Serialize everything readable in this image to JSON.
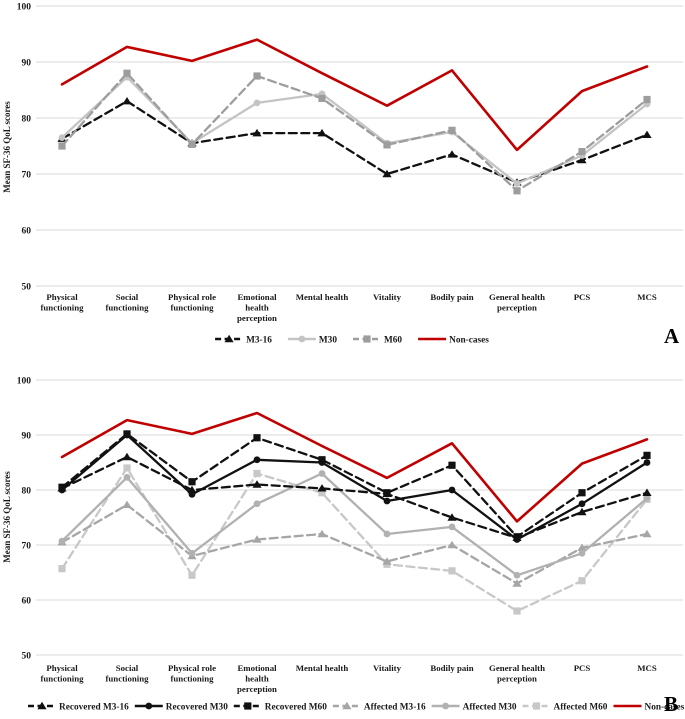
{
  "figure_title": "",
  "accent_colors": {
    "non_cases_red": "#c00000",
    "black_series": "#111111",
    "gray_dark": "#9d9d9d",
    "gray_light": "#c6c6c6",
    "gridline": "#d9d9d9"
  },
  "chart_data": [
    {
      "type": "line",
      "panel_label": "A",
      "ylabel": "Mean SF-36 QoL scores",
      "ylim": [
        50,
        100
      ],
      "y_ticks": [
        100,
        90,
        80,
        70,
        60,
        50
      ],
      "grid": "horizontal",
      "legend_position": "bottom-center",
      "categories": [
        "Physical functioning",
        "Social functioning",
        "Physical role functioning",
        "Emotional health perception",
        "Mental health",
        "Vitality",
        "Bodily pain",
        "General health perception",
        "PCS",
        "MCS"
      ],
      "category_label_lines": [
        [
          "Physical",
          "functioning"
        ],
        [
          "Social",
          "functioning"
        ],
        [
          "Physical role",
          "functioning"
        ],
        [
          "Emotional",
          "health",
          "perception"
        ],
        [
          "Mental health"
        ],
        [
          "Vitality"
        ],
        [
          "Bodily pain"
        ],
        [
          "General health",
          "perception"
        ],
        [
          "PCS"
        ],
        [
          "MCS"
        ]
      ],
      "series": [
        {
          "name": "M3-16",
          "color": "#111111",
          "dash": true,
          "marker": "triangle",
          "values": [
            76.3,
            83.0,
            75.5,
            77.3,
            77.3,
            70.0,
            73.5,
            68.5,
            72.5,
            77.0
          ]
        },
        {
          "name": "M30",
          "color": "#c4c4c4",
          "dash": false,
          "marker": "circle",
          "values": [
            76.5,
            87.3,
            75.5,
            82.7,
            84.3,
            75.5,
            77.5,
            68.3,
            73.3,
            82.5
          ]
        },
        {
          "name": "M60",
          "color": "#9d9d9d",
          "dash": true,
          "marker": "square",
          "values": [
            75.0,
            88.0,
            75.3,
            87.5,
            83.5,
            75.2,
            77.8,
            67.0,
            74.0,
            83.3
          ]
        },
        {
          "name": "Non-cases",
          "color": "#c00000",
          "dash": false,
          "marker": "none",
          "values": [
            86.0,
            92.7,
            90.2,
            94.0,
            88.0,
            82.2,
            88.5,
            74.3,
            84.8,
            89.2
          ]
        }
      ]
    },
    {
      "type": "line",
      "panel_label": "B",
      "ylabel": "Mean SF-36 QoL scores",
      "ylim": [
        50,
        100
      ],
      "y_ticks": [
        100,
        90,
        80,
        70,
        60,
        50
      ],
      "grid": "horizontal",
      "legend_position": "bottom-left",
      "categories": [
        "Physical functioning",
        "Social functioning",
        "Physical role functioning",
        "Emotional health perception",
        "Mental health",
        "Vitality",
        "Bodily pain",
        "General health perception",
        "PCS",
        "MCS"
      ],
      "category_label_lines": [
        [
          "Physical",
          "functioning"
        ],
        [
          "Social",
          "functioning"
        ],
        [
          "Physical role",
          "functioning"
        ],
        [
          "Emotional",
          "health",
          "perception"
        ],
        [
          "Mental health"
        ],
        [
          "Vitality"
        ],
        [
          "Bodily pain"
        ],
        [
          "General health",
          "perception"
        ],
        [
          "PCS"
        ],
        [
          "MCS"
        ]
      ],
      "series": [
        {
          "name": "Recovered M3-16",
          "color": "#111111",
          "dash": true,
          "marker": "triangle",
          "values": [
            80.3,
            86.0,
            80.0,
            81.0,
            80.3,
            79.3,
            75.0,
            71.3,
            76.0,
            79.5
          ]
        },
        {
          "name": "Recovered M30",
          "color": "#111111",
          "dash": false,
          "marker": "circle",
          "values": [
            80.0,
            90.0,
            79.2,
            85.5,
            85.0,
            78.0,
            80.0,
            71.0,
            77.5,
            85.0
          ]
        },
        {
          "name": "Recovered M60",
          "color": "#111111",
          "dash": true,
          "marker": "square",
          "values": [
            80.5,
            90.2,
            81.5,
            89.5,
            85.5,
            79.5,
            84.5,
            71.5,
            79.5,
            86.3
          ]
        },
        {
          "name": "Affected M3-16",
          "color": "#a6a6a6",
          "dash": true,
          "marker": "triangle",
          "values": [
            70.5,
            77.3,
            68.0,
            71.0,
            72.0,
            67.0,
            70.0,
            63.0,
            69.5,
            72.0
          ]
        },
        {
          "name": "Affected M30",
          "color": "#b1b1b1",
          "dash": false,
          "marker": "circle",
          "values": [
            70.7,
            82.3,
            68.5,
            77.5,
            83.0,
            72.0,
            73.3,
            64.5,
            68.5,
            78.5
          ]
        },
        {
          "name": "Affected M60",
          "color": "#c8c8c8",
          "dash": true,
          "marker": "square",
          "values": [
            65.7,
            84.0,
            64.5,
            83.0,
            79.5,
            66.5,
            65.3,
            58.0,
            63.5,
            78.3
          ]
        },
        {
          "name": "Non-cases",
          "color": "#c00000",
          "dash": false,
          "marker": "none",
          "values": [
            86.0,
            92.7,
            90.2,
            94.0,
            88.0,
            82.2,
            88.5,
            74.3,
            84.8,
            89.2
          ]
        }
      ]
    }
  ]
}
